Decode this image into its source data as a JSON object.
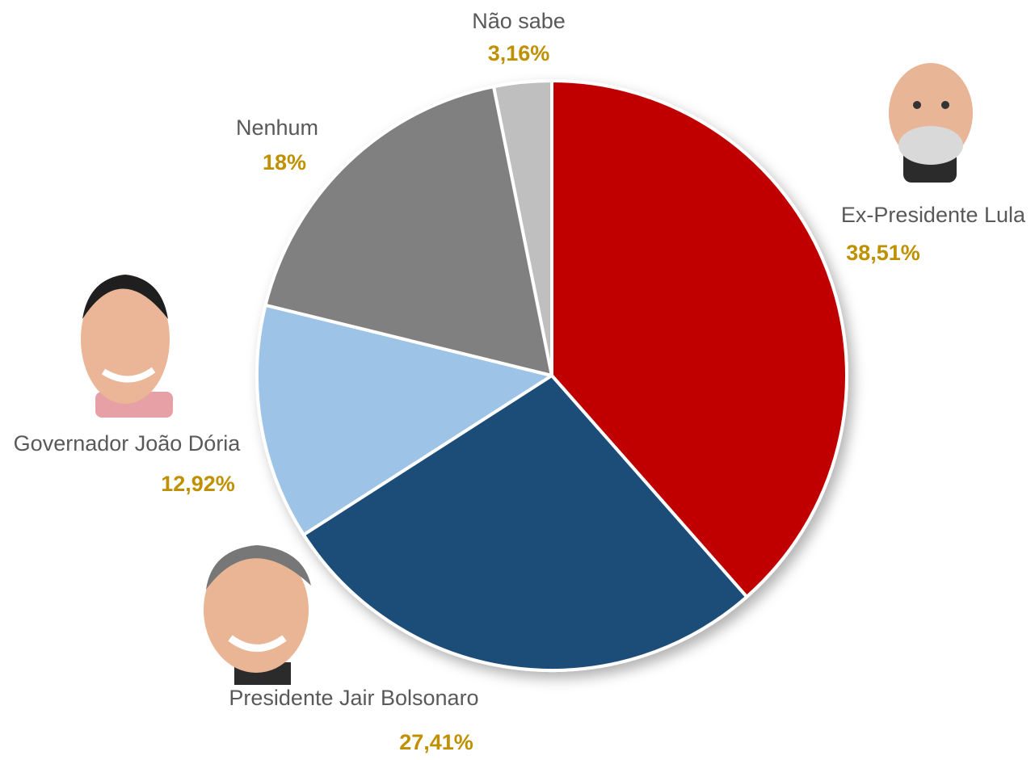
{
  "chart_data": {
    "type": "pie",
    "categories": [
      "Ex-Presidente Lula",
      "Presidente Jair Bolsonaro",
      "Governador João Dória",
      "Nenhum",
      "Não sabe"
    ],
    "values": [
      38.51,
      27.41,
      12.92,
      18,
      3.16
    ],
    "value_labels": [
      "38,51%",
      "27,41%",
      "12,92%",
      "18%",
      "3,16%"
    ],
    "colors": [
      "#c00000",
      "#1f4e79",
      "#9dc3e6",
      "#808080",
      "#bfbfbf"
    ]
  }
}
